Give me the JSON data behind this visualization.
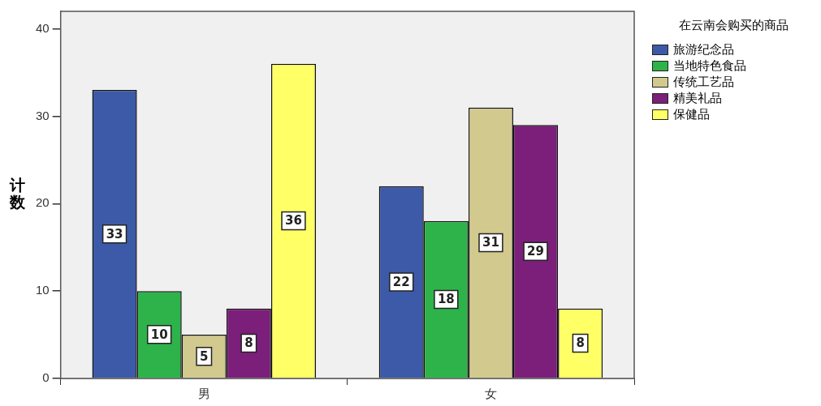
{
  "chart_data": {
    "type": "bar",
    "ylabel": "计数",
    "legend_title": "在云南会购买的商品",
    "categories": [
      "男",
      "女"
    ],
    "series": [
      {
        "name": "旅游纪念品",
        "color": "#3d5aa8",
        "values": [
          33,
          22
        ]
      },
      {
        "name": "当地特色食品",
        "color": "#2db34a",
        "values": [
          10,
          18
        ]
      },
      {
        "name": "传统工艺品",
        "color": "#d2c98f",
        "values": [
          5,
          31
        ]
      },
      {
        "name": "精美礼品",
        "color": "#7b1f7a",
        "values": [
          8,
          29
        ]
      },
      {
        "name": "保健品",
        "color": "#ffff66",
        "values": [
          36,
          8
        ]
      }
    ],
    "ylim": [
      0,
      42
    ],
    "yticks": [
      0,
      10,
      20,
      30,
      40
    ],
    "grid": false,
    "legend": "right",
    "data_labels": true
  }
}
